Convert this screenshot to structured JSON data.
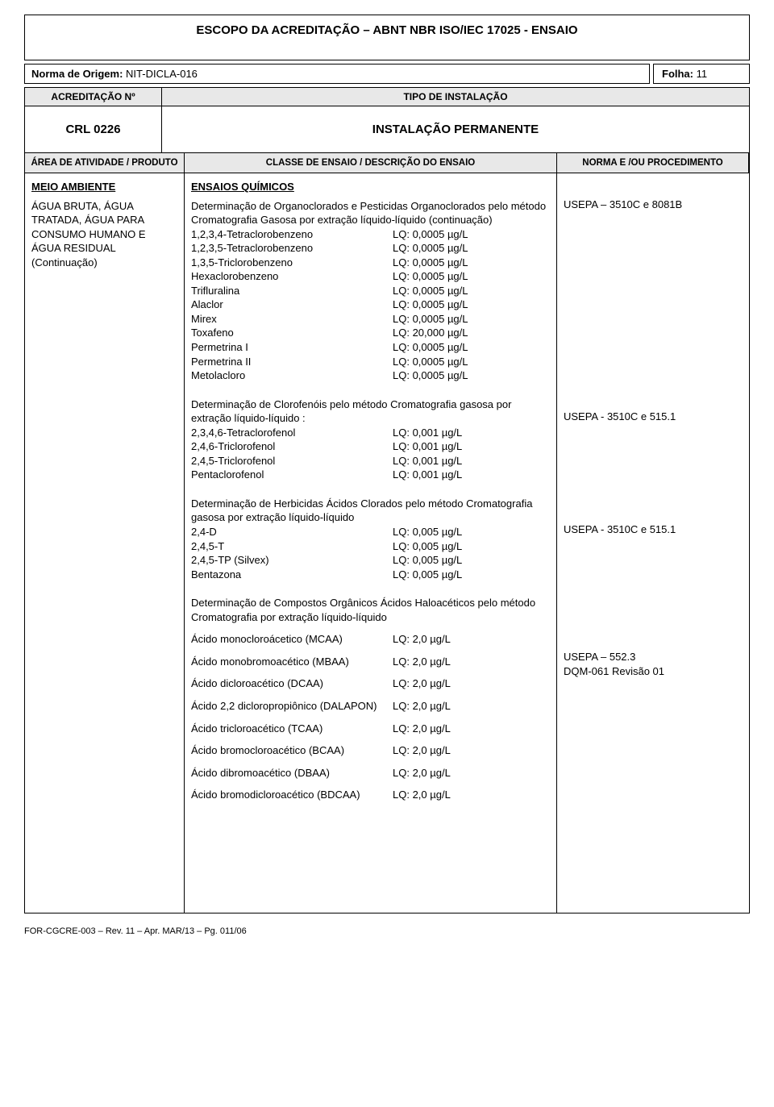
{
  "title": "ESCOPO DA ACREDITAÇÃO – ABNT NBR ISO/IEC 17025 - ENSAIO",
  "norma_label": "Norma de Origem:",
  "norma_value": "NIT-DICLA-016",
  "folha_label": "Folha:",
  "folha_value": "11",
  "hdr_acred": "ACREDITAÇÃO Nº",
  "hdr_tipo": "TIPO DE INSTALAÇÃO",
  "crl": "CRL 0226",
  "instalacao": "INSTALAÇÃO PERMANENTE",
  "col_area": "ÁREA DE ATIVIDADE / PRODUTO",
  "col_classe": "CLASSE DE ENSAIO / DESCRIÇÃO DO ENSAIO",
  "col_norma": "NORMA E /OU PROCEDIMENTO",
  "area_title": "MEIO AMBIENTE",
  "area_desc": "ÁGUA BRUTA, ÁGUA TRATADA, ÁGUA PARA CONSUMO HUMANO E ÁGUA RESIDUAL (Continuação)",
  "ensaios_title": "ENSAIOS QUÍMICOS",
  "sections": [
    {
      "desc": "Determinação de Organoclorados e Pesticidas Organoclorados pelo método Cromatografia Gasosa por extração líquido-líquido (continuação)",
      "norma": "USEPA – 3510C e 8081B",
      "params": [
        {
          "n": "1,2,3,4-Tetraclorobenzeno",
          "v": "LQ: 0,0005 µg/L"
        },
        {
          "n": "1,2,3,5-Tetraclorobenzeno",
          "v": "LQ: 0,0005 µg/L"
        },
        {
          "n": "1,3,5-Triclorobenzeno",
          "v": "LQ: 0,0005 µg/L"
        },
        {
          "n": "Hexaclorobenzeno",
          "v": "LQ: 0,0005 µg/L"
        },
        {
          "n": "Trifluralina",
          "v": "LQ: 0,0005 µg/L"
        },
        {
          "n": "Alaclor",
          "v": "LQ: 0,0005 µg/L"
        },
        {
          "n": "Mirex",
          "v": "LQ: 0,0005 µg/L"
        },
        {
          "n": "Toxafeno",
          "v": "LQ: 20,000 µg/L"
        },
        {
          "n": "Permetrina I",
          "v": "LQ: 0,0005 µg/L"
        },
        {
          "n": "Permetrina II",
          "v": "LQ: 0,0005 µg/L"
        },
        {
          "n": "Metolacloro",
          "v": "LQ: 0,0005 µg/L"
        }
      ]
    },
    {
      "desc": "Determinação de Clorofenóis pelo método Cromatografia gasosa por extração líquido-líquido :",
      "norma": "USEPA - 3510C e 515.1",
      "params": [
        {
          "n": "2,3,4,6-Tetraclorofenol",
          "v": "LQ: 0,001 µg/L"
        },
        {
          "n": "2,4,6-Triclorofenol",
          "v": "LQ: 0,001 µg/L"
        },
        {
          "n": "2,4,5-Triclorofenol",
          "v": "LQ: 0,001 µg/L"
        },
        {
          "n": "Pentaclorofenol",
          "v": "LQ: 0,001 µg/L"
        }
      ]
    },
    {
      "desc": "Determinação de Herbicidas Ácidos Clorados pelo método Cromatografia gasosa por extração líquido-líquido",
      "norma": "USEPA - 3510C e 515.1",
      "params": [
        {
          "n": "2,4-D",
          "v": "LQ: 0,005 µg/L"
        },
        {
          "n": "2,4,5-T",
          "v": "LQ: 0,005 µg/L"
        },
        {
          "n": "2,4,5-TP (Silvex)",
          "v": "LQ: 0,005 µg/L"
        },
        {
          "n": "Bentazona",
          "v": "LQ: 0,005 µg/L"
        }
      ]
    },
    {
      "desc": "Determinação de Compostos Orgânicos Ácidos Haloacéticos pelo método Cromatografia por extração líquido-líquido",
      "norma": "USEPA – 552.3\nDQM-061 Revisão 01",
      "spaced": true,
      "params": [
        {
          "n": "Ácido monocloroácetico (MCAA)",
          "v": "LQ: 2,0 µg/L"
        },
        {
          "n": "Ácido monobromoacético (MBAA)",
          "v": "LQ: 2,0 µg/L"
        },
        {
          "n": "Ácido dicloroacético (DCAA)",
          "v": "LQ: 2,0 µg/L"
        },
        {
          "n": "Ácido 2,2 dicloropropiônico (DALAPON)",
          "v": "LQ: 2,0 µg/L"
        },
        {
          "n": "Ácido tricloroacético (TCAA)",
          "v": "LQ: 2,0 µg/L"
        },
        {
          "n": "Ácido bromocloroacético (BCAA)",
          "v": "LQ: 2,0 µg/L"
        },
        {
          "n": "Ácido dibromoacético (DBAA)",
          "v": "LQ: 2,0 µg/L"
        },
        {
          "n": "Ácido bromodicloroacético (BDCAA)",
          "v": "LQ: 2,0 µg/L"
        }
      ]
    }
  ],
  "footer": "FOR-CGCRE-003 – Rev. 11 – Apr. MAR/13 – Pg. 011/06"
}
